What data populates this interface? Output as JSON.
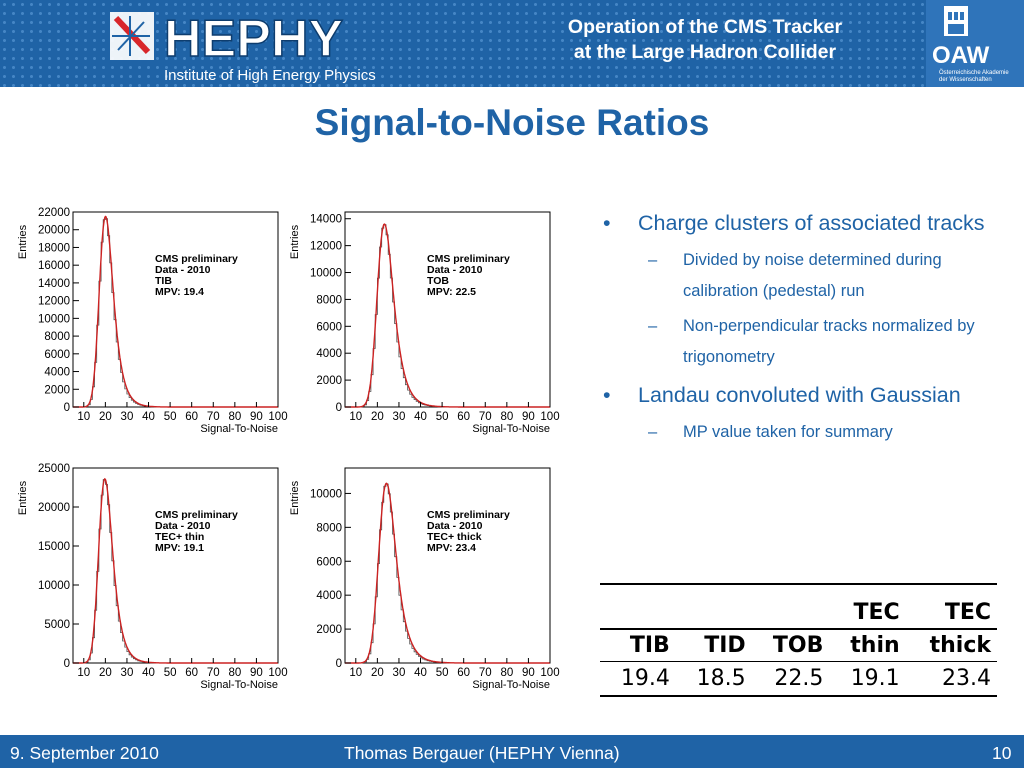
{
  "header": {
    "logo_name": "HEPHY",
    "logo_subtitle": "Institute of High Energy Physics",
    "title_line1": "Operation of the CMS Tracker",
    "title_line2": "at the Large Hadron Collider",
    "right_logo": "OAW",
    "right_logo_sub1": "Österreichische Akademie",
    "right_logo_sub2": "der Wissenschaften"
  },
  "slide_title": "Signal-to-Noise Ratios",
  "colors": {
    "accent": "#1f63a6",
    "curve": "#cc2222",
    "histogram": "#555555"
  },
  "chart_data": [
    {
      "type": "line",
      "xlabel": "Signal-To-Noise",
      "ylabel": "Entries",
      "xlim": [
        5,
        100
      ],
      "ylim": [
        0,
        22000
      ],
      "xticks": [
        10,
        20,
        30,
        40,
        50,
        60,
        70,
        80,
        90,
        100
      ],
      "yticks": [
        0,
        2000,
        4000,
        6000,
        8000,
        10000,
        12000,
        14000,
        16000,
        18000,
        20000,
        22000
      ],
      "peak_value": 21500,
      "mpv": 19.4,
      "width": 1.6,
      "sigma": 2.0,
      "annotations": [
        "CMS preliminary",
        "Data - 2010",
        "TIB",
        "MPV: 19.4"
      ]
    },
    {
      "type": "line",
      "xlabel": "Signal-To-Noise",
      "ylabel": "Entries",
      "xlim": [
        5,
        100
      ],
      "ylim": [
        0,
        14500
      ],
      "xticks": [
        10,
        20,
        30,
        40,
        50,
        60,
        70,
        80,
        90,
        100
      ],
      "yticks": [
        0,
        2000,
        4000,
        6000,
        8000,
        10000,
        12000,
        14000
      ],
      "peak_value": 13600,
      "mpv": 22.5,
      "width": 1.9,
      "sigma": 2.3,
      "annotations": [
        "CMS preliminary",
        "Data - 2010",
        "TOB",
        "MPV: 22.5"
      ]
    },
    {
      "type": "line",
      "xlabel": "Signal-To-Noise",
      "ylabel": "Entries",
      "xlim": [
        5,
        100
      ],
      "ylim": [
        0,
        25000
      ],
      "xticks": [
        10,
        20,
        30,
        40,
        50,
        60,
        70,
        80,
        90,
        100
      ],
      "yticks": [
        0,
        5000,
        10000,
        15000,
        20000,
        25000
      ],
      "peak_value": 23600,
      "mpv": 19.1,
      "width": 1.6,
      "sigma": 2.0,
      "annotations": [
        "CMS preliminary",
        "Data - 2010",
        "TEC+ thin",
        "MPV: 19.1"
      ]
    },
    {
      "type": "line",
      "xlabel": "Signal-To-Noise",
      "ylabel": "Entries",
      "xlim": [
        5,
        100
      ],
      "ylim": [
        0,
        11500
      ],
      "xticks": [
        10,
        20,
        30,
        40,
        50,
        60,
        70,
        80,
        90,
        100
      ],
      "yticks": [
        0,
        2000,
        4000,
        6000,
        8000,
        10000
      ],
      "peak_value": 10600,
      "mpv": 23.4,
      "width": 2.0,
      "sigma": 2.4,
      "annotations": [
        "CMS preliminary",
        "Data - 2010",
        "TEC+ thick",
        "MPV: 23.4"
      ]
    }
  ],
  "bullets": [
    {
      "text": "Charge clusters of associated tracks",
      "sub": [
        "Divided by noise determined during calibration (pedestal) run",
        "Non-perpendicular tracks normalized by trigonometry"
      ]
    },
    {
      "text": "Landau convoluted with Gaussian",
      "sub": [
        "MP value taken for summary"
      ]
    }
  ],
  "table": {
    "headers": [
      [
        "",
        "TIB"
      ],
      [
        "",
        "TID"
      ],
      [
        "",
        "TOB"
      ],
      [
        "TEC",
        "thin"
      ],
      [
        "TEC",
        "thick"
      ]
    ],
    "values": [
      "19.4",
      "18.5",
      "22.5",
      "19.1",
      "23.4"
    ]
  },
  "footer": {
    "date": "9. September 2010",
    "author": "Thomas Bergauer (HEPHY Vienna)",
    "page": "10"
  }
}
